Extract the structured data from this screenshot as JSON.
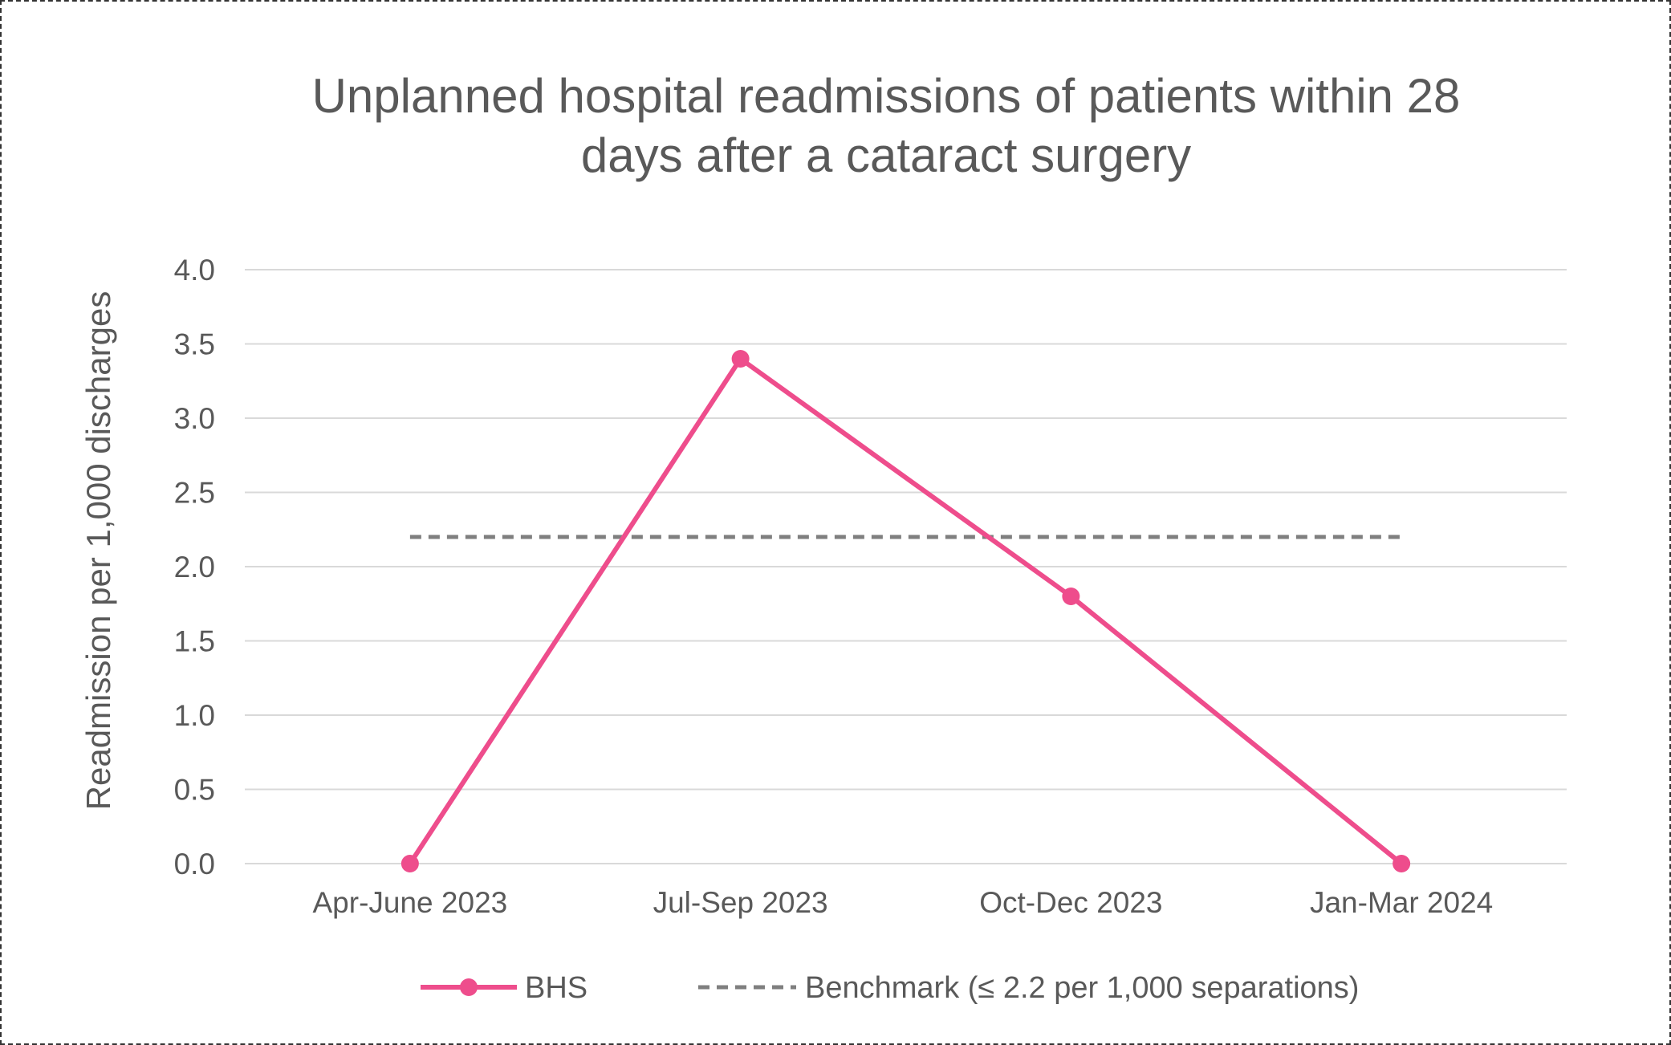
{
  "chart_data": {
    "type": "line",
    "title_lines": [
      "Unplanned hospital readmissions of patients within 28",
      "days after a cataract surgery"
    ],
    "ylabel": "Readmission per 1,000 discharges",
    "xlabel": "",
    "categories": [
      "Apr-June 2023",
      "Jul-Sep 2023",
      "Oct-Dec 2023",
      "Jan-Mar 2024"
    ],
    "y_ticks": [
      "0.0",
      "0.5",
      "1.0",
      "1.5",
      "2.0",
      "2.5",
      "3.0",
      "3.5",
      "4.0"
    ],
    "ylim": [
      0,
      4
    ],
    "grid": true,
    "legend_position": "bottom",
    "series": [
      {
        "name": "BHS",
        "values": [
          0,
          3.4,
          1.8,
          0
        ],
        "color": "#EE4D8C",
        "style": "solid-with-markers"
      },
      {
        "name": "Benchmark (≤ 2.2 per 1,000 separations)",
        "values": [
          2.2,
          2.2,
          2.2,
          2.2
        ],
        "color": "#7F7F7F",
        "style": "dashed"
      }
    ]
  }
}
